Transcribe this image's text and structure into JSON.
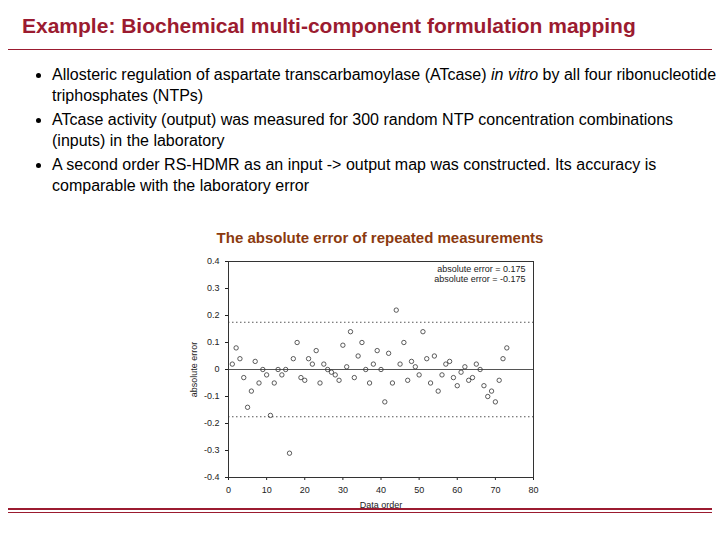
{
  "slide_title": "Example: Biochemical multi-component formulation mapping",
  "bullets": [
    [
      {
        "text": "Allosteric regulation of aspartate transcarbamoylase (ATcase) "
      },
      {
        "text": "in vitro",
        "italic": true
      },
      {
        "text": " by all four ribonucleotide triphosphates (NTPs)"
      }
    ],
    [
      {
        "text": "ATcase activity (output) was measured for 300 random NTP concentration combinations (inputs) in the laboratory"
      }
    ],
    [
      {
        "text": "A second order RS-HDMR as an input -> output map was constructed. Its accuracy is comparable with the laboratory error"
      }
    ]
  ],
  "chart_data": {
    "type": "scatter",
    "title": "The absolute error of repeated measurements",
    "xlabel": "Data order",
    "ylabel": "absolute error",
    "marker": "circle",
    "color": "#333333",
    "x": [
      1,
      2,
      3,
      4,
      5,
      6,
      7,
      8,
      9,
      10,
      11,
      12,
      13,
      14,
      15,
      16,
      17,
      18,
      19,
      20,
      21,
      22,
      23,
      24,
      25,
      26,
      27,
      28,
      29,
      30,
      31,
      32,
      33,
      34,
      35,
      36,
      37,
      38,
      39,
      40,
      41,
      42,
      43,
      44,
      45,
      46,
      47,
      48,
      49,
      50,
      51,
      52,
      53,
      54,
      55,
      56,
      57,
      58,
      59,
      60,
      61,
      62,
      63,
      64,
      65,
      66,
      67,
      68,
      69,
      70,
      71,
      72,
      73
    ],
    "values": [
      0.02,
      0.08,
      0.04,
      -0.03,
      -0.14,
      -0.08,
      0.03,
      -0.05,
      0.0,
      -0.02,
      -0.17,
      -0.05,
      0.0,
      -0.02,
      0.0,
      -0.31,
      0.04,
      0.1,
      -0.03,
      -0.04,
      0.04,
      0.02,
      0.07,
      -0.05,
      0.02,
      0.0,
      -0.01,
      -0.02,
      -0.04,
      0.09,
      0.01,
      0.14,
      -0.03,
      0.05,
      0.1,
      0.0,
      -0.05,
      0.02,
      0.07,
      0.0,
      -0.12,
      0.06,
      -0.05,
      0.22,
      0.02,
      0.1,
      -0.04,
      0.03,
      0.01,
      -0.02,
      0.14,
      0.04,
      -0.05,
      0.05,
      -0.08,
      -0.02,
      0.02,
      0.03,
      -0.03,
      -0.06,
      -0.01,
      0.01,
      -0.04,
      -0.03,
      0.02,
      0.0,
      -0.06,
      -0.1,
      -0.08,
      -0.12,
      -0.04,
      0.04,
      0.08
    ],
    "xlim": [
      0,
      80
    ],
    "xticks": [
      0,
      10,
      20,
      30,
      40,
      50,
      60,
      70,
      80
    ],
    "ylim": [
      -0.4,
      0.4
    ],
    "yticks": [
      -0.4,
      -0.3,
      -0.2,
      -0.1,
      0,
      0.1,
      0.2,
      0.3,
      0.4
    ],
    "baseline": 0,
    "reference_lines": [
      {
        "label": "absolute error = 0.175",
        "value": 0.175,
        "line_style": "dotted"
      },
      {
        "label": "absolute error = -0.175",
        "value": -0.175,
        "line_style": "dotted"
      }
    ]
  }
}
